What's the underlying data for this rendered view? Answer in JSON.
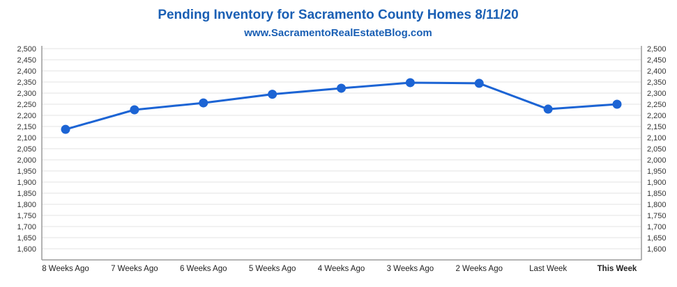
{
  "chart_data": {
    "type": "line",
    "title": "Pending Inventory for Sacramento County Homes 8/11/20",
    "subtitle": "www.SacramentoRealEstateBlog.com",
    "xlabel": "",
    "ylabel": "",
    "categories": [
      "8 Weeks Ago",
      "7 Weeks Ago",
      "6 Weeks Ago",
      "5 Weeks Ago",
      "4 Weeks Ago",
      "3 Weeks Ago",
      "2 Weeks Ago",
      "Last Week",
      "This Week"
    ],
    "highlight_category": "This Week",
    "series": [
      {
        "name": "Pending Inventory",
        "values": [
          2137,
          2225,
          2256,
          2295,
          2322,
          2347,
          2344,
          2228,
          2250
        ]
      }
    ],
    "ylim": [
      1550,
      2500
    ],
    "yticks": [
      1600,
      1650,
      1700,
      1750,
      1800,
      1850,
      1900,
      1950,
      2000,
      2050,
      2100,
      2150,
      2200,
      2250,
      2300,
      2350,
      2400,
      2450,
      2500
    ],
    "ytick_labels": [
      "1,600",
      "1,650",
      "1,700",
      "1,750",
      "1,800",
      "1,850",
      "1,900",
      "1,950",
      "2,000",
      "2,050",
      "2,100",
      "2,150",
      "2,200",
      "2,250",
      "2,300",
      "2,350",
      "2,400",
      "2,450",
      "2,500"
    ],
    "grid": true,
    "secondary_y_axis": true,
    "legend": "none"
  },
  "colors": {
    "title": "#1a5fb4",
    "line": "#1c64d4",
    "marker": "#1c64d4",
    "grid": "#e3e3e3",
    "axis": "#9a9a9a",
    "highlight_label": "#1c64d4"
  }
}
